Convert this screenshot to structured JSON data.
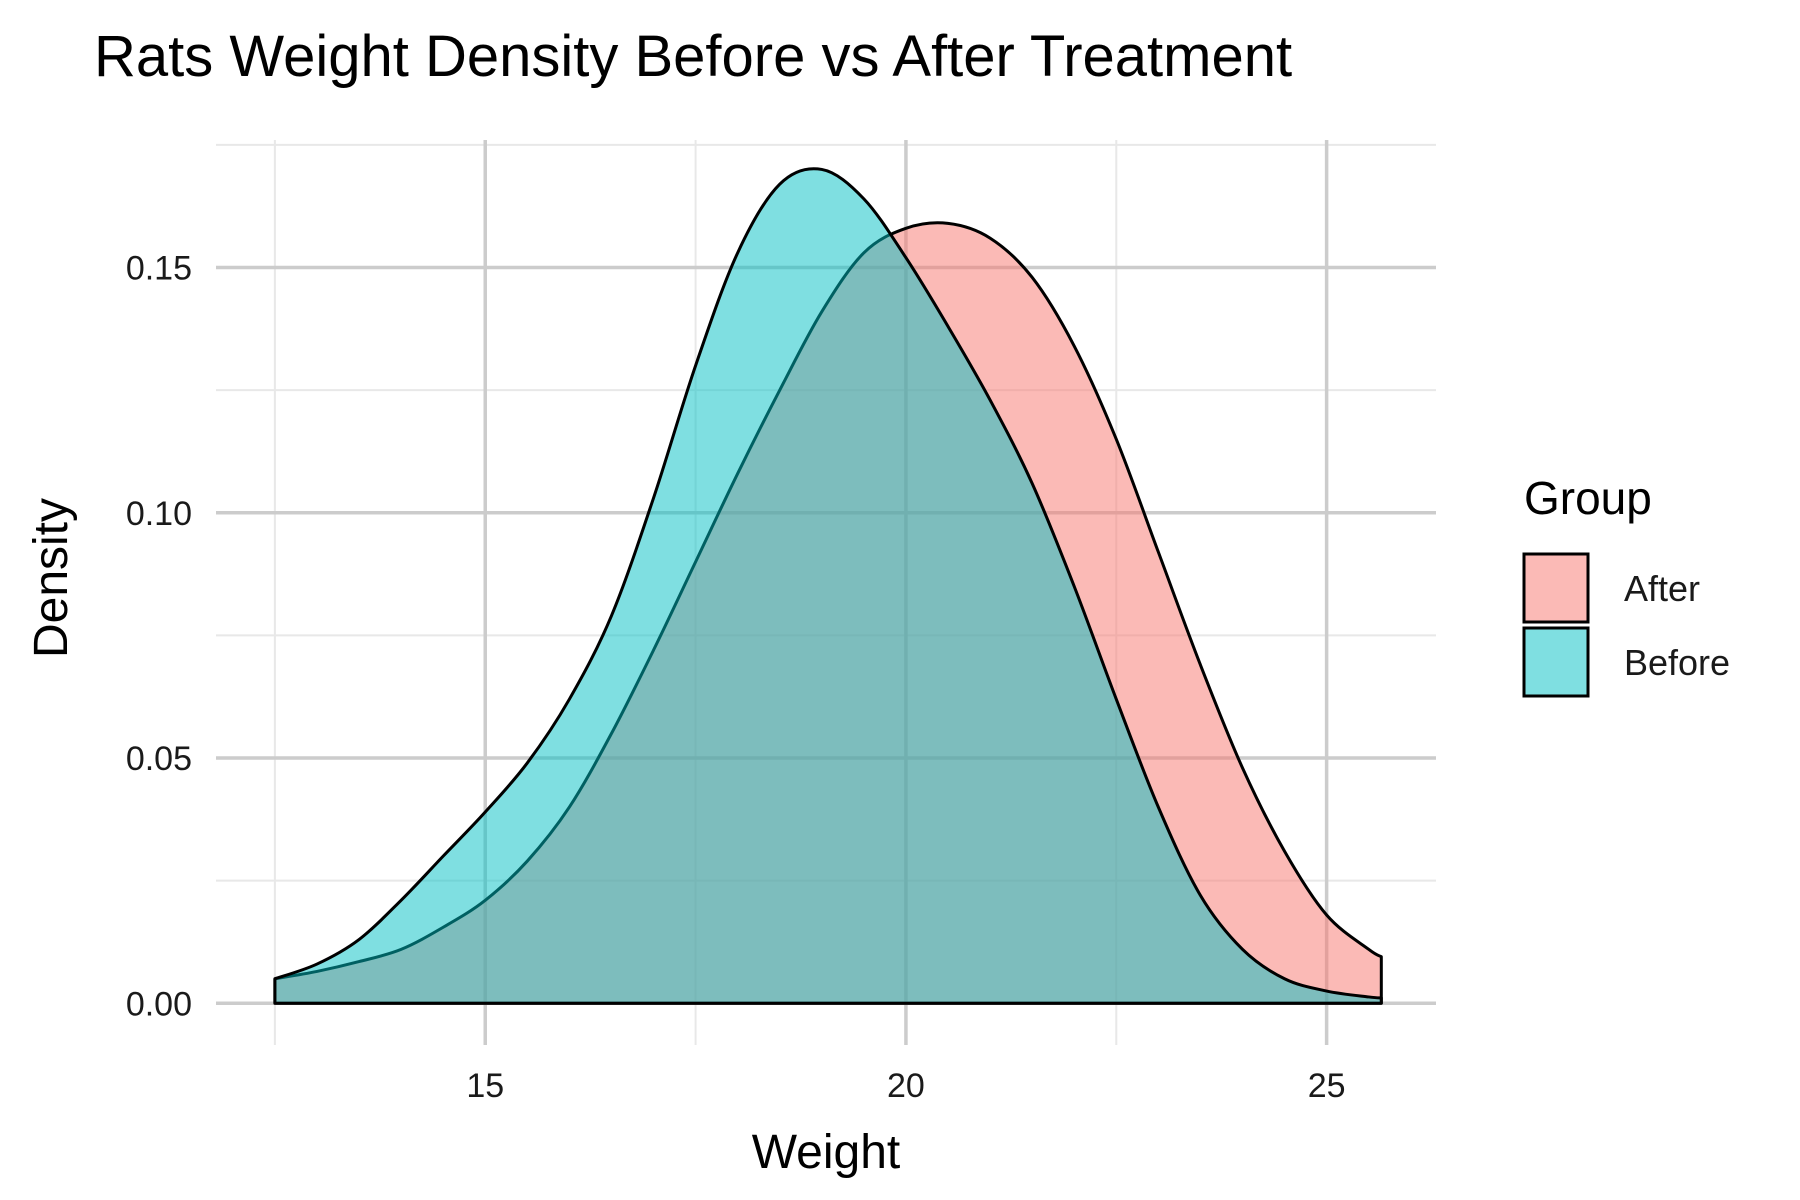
{
  "chart_data": {
    "type": "area",
    "title": "Rats Weight Density Before vs After Treatment",
    "subtitle": "",
    "xlabel": "Weight",
    "ylabel": "Density",
    "xlim": [
      11.8,
      26.3
    ],
    "ylim": [
      -0.0085,
      0.176
    ],
    "x_ticks": [
      15,
      20,
      25
    ],
    "x_minor_ticks": [
      12.5,
      17.5,
      22.5
    ],
    "y_ticks": [
      0.0,
      0.05,
      0.1,
      0.15
    ],
    "y_tick_labels": [
      "0.00",
      "0.05",
      "0.10",
      "0.15"
    ],
    "y_minor_ticks": [
      0.025,
      0.075,
      0.125,
      0.175
    ],
    "grid": true,
    "legend": {
      "title": "Group",
      "placement": "right",
      "entries": [
        "After",
        "Before"
      ]
    },
    "series": [
      {
        "name": "After",
        "color": "#F8766D",
        "opacity": 0.5,
        "x": [
          12.5,
          13.0,
          13.5,
          14.0,
          14.5,
          15.0,
          15.5,
          16.0,
          16.5,
          17.0,
          17.5,
          18.0,
          18.5,
          19.0,
          19.5,
          20.0,
          20.5,
          21.0,
          21.5,
          22.0,
          22.5,
          23.0,
          23.5,
          24.0,
          24.5,
          25.0,
          25.5,
          25.65
        ],
        "y": [
          0.005,
          0.0065,
          0.0085,
          0.011,
          0.0155,
          0.021,
          0.029,
          0.04,
          0.055,
          0.072,
          0.09,
          0.108,
          0.125,
          0.141,
          0.153,
          0.158,
          0.159,
          0.156,
          0.148,
          0.134,
          0.115,
          0.092,
          0.069,
          0.048,
          0.031,
          0.018,
          0.011,
          0.0095
        ]
      },
      {
        "name": "Before",
        "color": "#00BFC4",
        "opacity": 0.5,
        "x": [
          12.5,
          13.0,
          13.5,
          14.0,
          14.5,
          15.0,
          15.5,
          16.0,
          16.5,
          17.0,
          17.5,
          18.0,
          18.5,
          19.0,
          19.5,
          20.0,
          20.5,
          21.0,
          21.5,
          22.0,
          22.5,
          23.0,
          23.5,
          24.0,
          24.5,
          25.0,
          25.5,
          25.65
        ],
        "y": [
          0.005,
          0.008,
          0.013,
          0.021,
          0.03,
          0.039,
          0.049,
          0.062,
          0.079,
          0.103,
          0.13,
          0.153,
          0.167,
          0.17,
          0.164,
          0.152,
          0.138,
          0.123,
          0.106,
          0.085,
          0.062,
          0.04,
          0.022,
          0.011,
          0.005,
          0.0025,
          0.0013,
          0.0011
        ]
      }
    ]
  }
}
